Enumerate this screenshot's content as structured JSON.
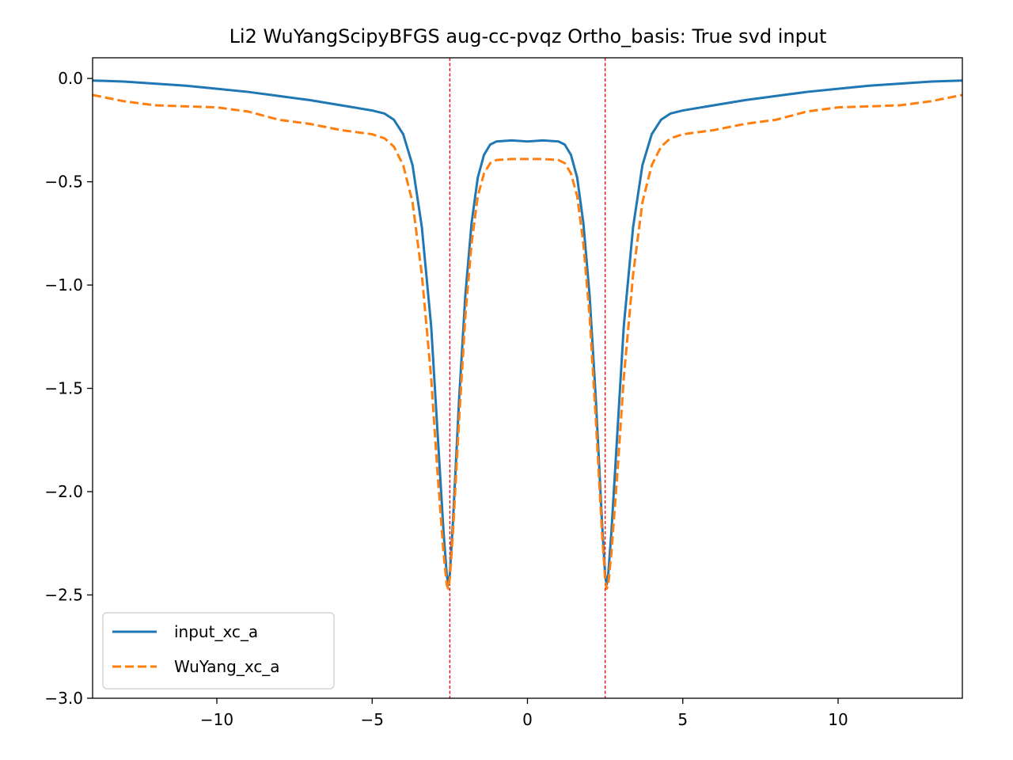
{
  "chart_data": {
    "type": "line",
    "title": "Li2 WuYangScipyBFGS aug-cc-pvqz Ortho_basis: True svd input",
    "xlabel": "",
    "ylabel": "",
    "xlim": [
      -14,
      14
    ],
    "ylim": [
      -3.0,
      0.1
    ],
    "xticks": [
      -10,
      -5,
      0,
      5,
      10
    ],
    "xtick_labels": [
      "−10",
      "−5",
      "0",
      "5",
      "10"
    ],
    "yticks": [
      0.0,
      -0.5,
      -1.0,
      -1.5,
      -2.0,
      -2.5,
      -3.0
    ],
    "ytick_labels": [
      "0.0",
      "−0.5",
      "−1.0",
      "−1.5",
      "−2.0",
      "−2.5",
      "−3.0"
    ],
    "grid": false,
    "legend_position": "lower-left",
    "vlines": [
      {
        "x": -2.5,
        "color": "#ff0000",
        "style": "dashed"
      },
      {
        "x": 2.5,
        "color": "#ff0000",
        "style": "dashed"
      }
    ],
    "series": [
      {
        "name": "input_xc_a",
        "color": "#1f77b4",
        "style": "solid",
        "points": [
          [
            -14,
            -0.01
          ],
          [
            -13,
            -0.015
          ],
          [
            -12,
            -0.025
          ],
          [
            -11,
            -0.035
          ],
          [
            -10,
            -0.05
          ],
          [
            -9,
            -0.065
          ],
          [
            -8,
            -0.085
          ],
          [
            -7,
            -0.105
          ],
          [
            -6,
            -0.13
          ],
          [
            -5,
            -0.155
          ],
          [
            -4.6,
            -0.17
          ],
          [
            -4.3,
            -0.2
          ],
          [
            -4.0,
            -0.27
          ],
          [
            -3.7,
            -0.42
          ],
          [
            -3.4,
            -0.72
          ],
          [
            -3.1,
            -1.2
          ],
          [
            -2.9,
            -1.7
          ],
          [
            -2.7,
            -2.2
          ],
          [
            -2.6,
            -2.4
          ],
          [
            -2.55,
            -2.45
          ],
          [
            -2.5,
            -2.4
          ],
          [
            -2.4,
            -2.15
          ],
          [
            -2.2,
            -1.55
          ],
          [
            -2.0,
            -1.05
          ],
          [
            -1.8,
            -0.7
          ],
          [
            -1.6,
            -0.48
          ],
          [
            -1.4,
            -0.37
          ],
          [
            -1.2,
            -0.32
          ],
          [
            -1.0,
            -0.305
          ],
          [
            -0.5,
            -0.3
          ],
          [
            0,
            -0.305
          ],
          [
            0.5,
            -0.3
          ],
          [
            1.0,
            -0.305
          ],
          [
            1.2,
            -0.32
          ],
          [
            1.4,
            -0.37
          ],
          [
            1.6,
            -0.48
          ],
          [
            1.8,
            -0.7
          ],
          [
            2.0,
            -1.05
          ],
          [
            2.2,
            -1.55
          ],
          [
            2.4,
            -2.15
          ],
          [
            2.5,
            -2.4
          ],
          [
            2.55,
            -2.45
          ],
          [
            2.6,
            -2.4
          ],
          [
            2.7,
            -2.2
          ],
          [
            2.9,
            -1.7
          ],
          [
            3.1,
            -1.2
          ],
          [
            3.4,
            -0.72
          ],
          [
            3.7,
            -0.42
          ],
          [
            4.0,
            -0.27
          ],
          [
            4.3,
            -0.2
          ],
          [
            4.6,
            -0.17
          ],
          [
            5,
            -0.155
          ],
          [
            6,
            -0.13
          ],
          [
            7,
            -0.105
          ],
          [
            8,
            -0.085
          ],
          [
            9,
            -0.065
          ],
          [
            10,
            -0.05
          ],
          [
            11,
            -0.035
          ],
          [
            12,
            -0.025
          ],
          [
            13,
            -0.015
          ],
          [
            14,
            -0.01
          ]
        ]
      },
      {
        "name": "WuYang_xc_a",
        "color": "#ff7f0e",
        "style": "dashed",
        "points": [
          [
            -14,
            -0.08
          ],
          [
            -13,
            -0.11
          ],
          [
            -12,
            -0.13
          ],
          [
            -11,
            -0.135
          ],
          [
            -10,
            -0.14
          ],
          [
            -9,
            -0.16
          ],
          [
            -8,
            -0.2
          ],
          [
            -7,
            -0.22
          ],
          [
            -6,
            -0.25
          ],
          [
            -5,
            -0.27
          ],
          [
            -4.6,
            -0.29
          ],
          [
            -4.3,
            -0.33
          ],
          [
            -4.0,
            -0.42
          ],
          [
            -3.7,
            -0.6
          ],
          [
            -3.4,
            -0.95
          ],
          [
            -3.1,
            -1.45
          ],
          [
            -2.9,
            -1.9
          ],
          [
            -2.7,
            -2.3
          ],
          [
            -2.6,
            -2.45
          ],
          [
            -2.55,
            -2.47
          ],
          [
            -2.5,
            -2.42
          ],
          [
            -2.4,
            -2.2
          ],
          [
            -2.2,
            -1.65
          ],
          [
            -2.0,
            -1.15
          ],
          [
            -1.8,
            -0.8
          ],
          [
            -1.6,
            -0.57
          ],
          [
            -1.4,
            -0.46
          ],
          [
            -1.2,
            -0.41
          ],
          [
            -1.0,
            -0.395
          ],
          [
            -0.5,
            -0.39
          ],
          [
            0,
            -0.39
          ],
          [
            0.5,
            -0.39
          ],
          [
            1.0,
            -0.395
          ],
          [
            1.2,
            -0.41
          ],
          [
            1.4,
            -0.46
          ],
          [
            1.6,
            -0.57
          ],
          [
            1.8,
            -0.8
          ],
          [
            2.0,
            -1.15
          ],
          [
            2.2,
            -1.65
          ],
          [
            2.4,
            -2.2
          ],
          [
            2.5,
            -2.42
          ],
          [
            2.55,
            -2.47
          ],
          [
            2.6,
            -2.45
          ],
          [
            2.7,
            -2.3
          ],
          [
            2.9,
            -1.9
          ],
          [
            3.1,
            -1.45
          ],
          [
            3.4,
            -0.95
          ],
          [
            3.7,
            -0.6
          ],
          [
            4.0,
            -0.42
          ],
          [
            4.3,
            -0.33
          ],
          [
            4.6,
            -0.29
          ],
          [
            5,
            -0.27
          ],
          [
            6,
            -0.25
          ],
          [
            7,
            -0.22
          ],
          [
            8,
            -0.2
          ],
          [
            9,
            -0.16
          ],
          [
            10,
            -0.14
          ],
          [
            11,
            -0.135
          ],
          [
            12,
            -0.13
          ],
          [
            13,
            -0.11
          ],
          [
            14,
            -0.08
          ]
        ]
      }
    ]
  }
}
